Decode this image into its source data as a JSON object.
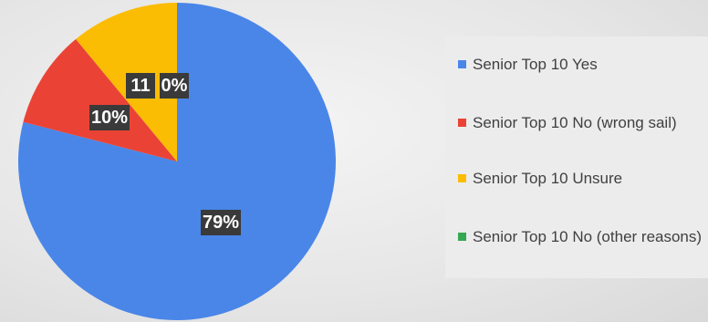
{
  "chart_data": {
    "type": "pie",
    "slices": [
      {
        "name": "Senior Top 10 Yes",
        "value": 79,
        "label": "79%",
        "color": "#4a86e8"
      },
      {
        "name": "Senior Top 10 No (wrong sail)",
        "value": 10,
        "label": "10%",
        "color": "#ea4335"
      },
      {
        "name": "Senior Top 10 Unsure",
        "value": 11,
        "label": "11",
        "color": "#fbbc04"
      },
      {
        "name": "Senior Top 10 No (other reasons)",
        "value": 0,
        "label": "0%",
        "color": "#34a853"
      }
    ],
    "legend_position": "right"
  }
}
